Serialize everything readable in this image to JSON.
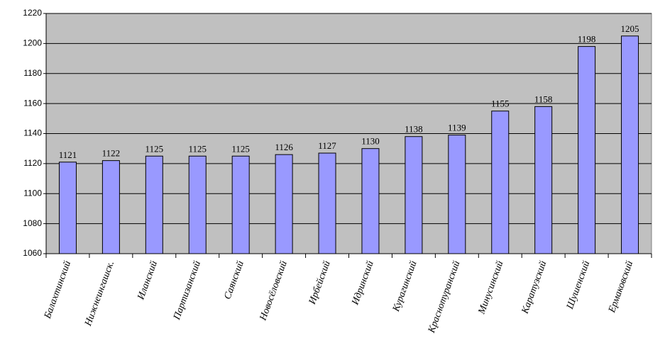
{
  "chart_data": {
    "type": "bar",
    "categories": [
      "Балахтинский",
      "Нижнеингашск.",
      "Иланский",
      "Партизанский",
      "Саянский",
      "Новосёловский",
      "Ирбейский",
      "Идринский",
      "Курагинский",
      "Краснотуранский",
      "Минусинский",
      "Каратузский",
      "Шушенский",
      "Ермаковский"
    ],
    "values": [
      1121,
      1122,
      1125,
      1125,
      1125,
      1126,
      1127,
      1130,
      1138,
      1139,
      1155,
      1158,
      1198,
      1205
    ],
    "color": "#9999ff",
    "ylim": [
      1060,
      1220
    ],
    "yticks": [
      1060,
      1080,
      1100,
      1120,
      1140,
      1160,
      1180,
      1200,
      1220
    ],
    "grid": true
  }
}
